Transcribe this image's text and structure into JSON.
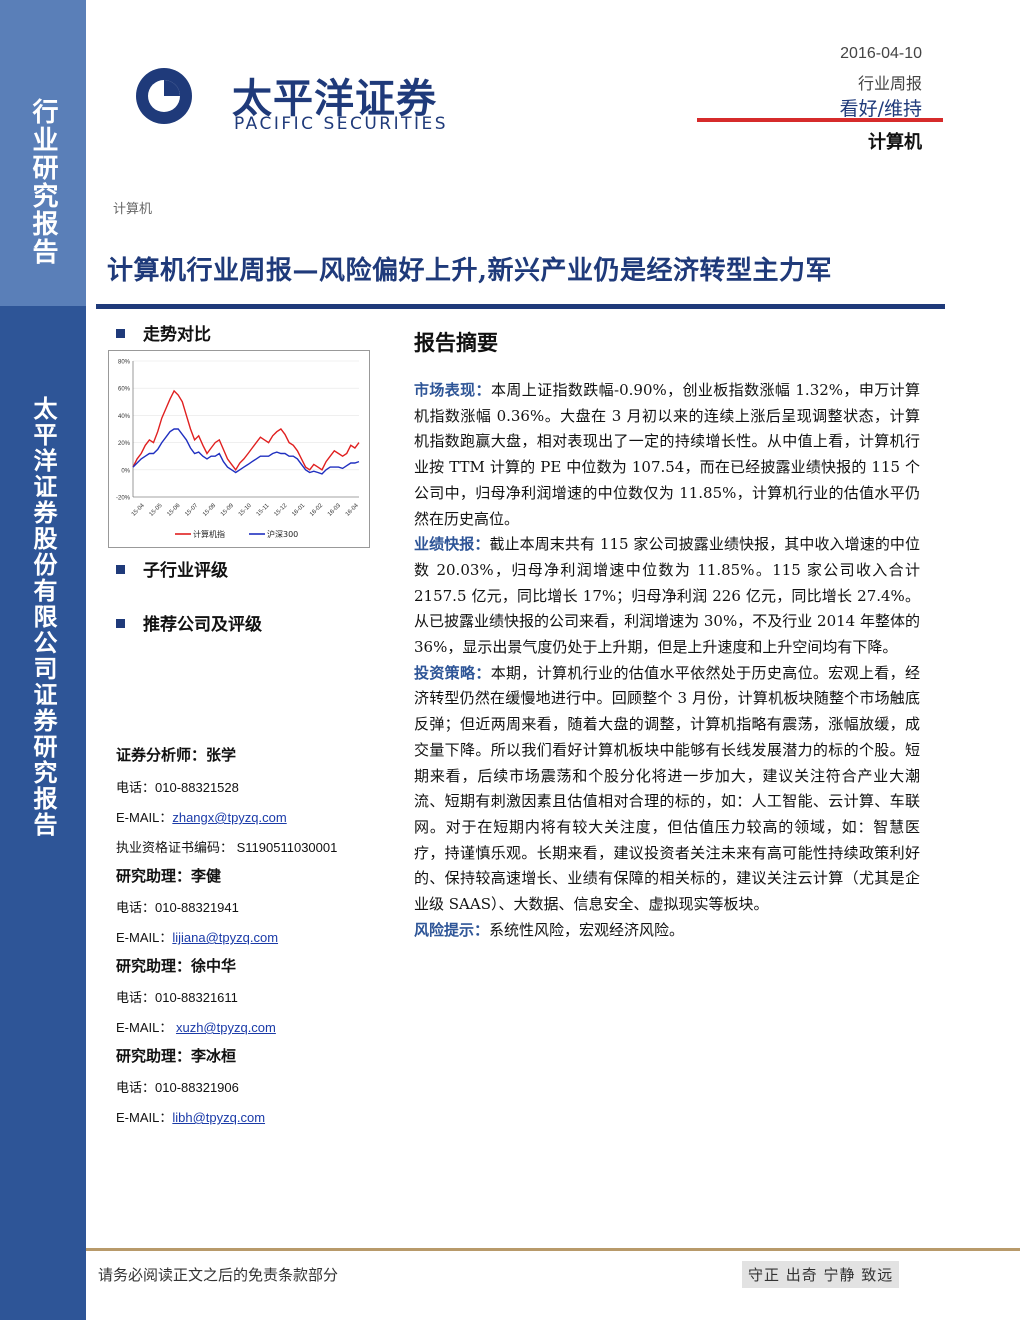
{
  "sidebar": {
    "top_text": "行业研究报告",
    "bottom_text": "太平洋证券股份有限公司证券研究报告"
  },
  "brand": {
    "name_cn": "太平洋证券",
    "name_en": "PACIFIC SECURITIES"
  },
  "header": {
    "date": "2016-04-10",
    "report_type": "行业周报",
    "rating": "看好/维持",
    "industry": "计算机"
  },
  "category_label": "计算机",
  "title": "计算机行业周报—风险偏好上升,新兴产业仍是经济转型主力军",
  "left": {
    "trend_heading": "走势对比",
    "subindustry_heading": "子行业评级",
    "recommend_heading": "推荐公司及评级"
  },
  "chart_data": {
    "type": "line",
    "ylim": [
      -0.2,
      0.8
    ],
    "y_ticks": [
      "80%",
      "60%",
      "40%",
      "20%",
      "0%",
      "-20%"
    ],
    "x_ticks": [
      "15-04",
      "15-05",
      "15-06",
      "15-07",
      "15-08",
      "15-09",
      "15-10",
      "15-11",
      "15-12",
      "16-01",
      "16-02",
      "16-03",
      "16-04"
    ],
    "series": [
      {
        "name": "计算机指",
        "color": "#e02020",
        "values": [
          0.02,
          0.08,
          0.12,
          0.18,
          0.22,
          0.2,
          0.28,
          0.38,
          0.45,
          0.52,
          0.58,
          0.55,
          0.5,
          0.4,
          0.3,
          0.22,
          0.25,
          0.18,
          0.12,
          0.16,
          0.2,
          0.22,
          0.15,
          0.08,
          0.04,
          0.0,
          0.05,
          0.08,
          0.12,
          0.16,
          0.2,
          0.24,
          0.22,
          0.2,
          0.25,
          0.28,
          0.3,
          0.26,
          0.2,
          0.18,
          0.14,
          0.08,
          0.02,
          0.0,
          0.04,
          0.02,
          0.0,
          0.06,
          0.1,
          0.14,
          0.12,
          0.1,
          0.12,
          0.18,
          0.16,
          0.2
        ]
      },
      {
        "name": "沪深300",
        "color": "#2030c0",
        "values": [
          0.02,
          0.05,
          0.08,
          0.1,
          0.12,
          0.12,
          0.15,
          0.2,
          0.24,
          0.28,
          0.3,
          0.3,
          0.26,
          0.22,
          0.16,
          0.12,
          0.13,
          0.1,
          0.08,
          0.1,
          0.1,
          0.12,
          0.06,
          0.02,
          0.0,
          -0.02,
          0.0,
          0.02,
          0.04,
          0.06,
          0.08,
          0.1,
          0.1,
          0.1,
          0.12,
          0.13,
          0.12,
          0.12,
          0.1,
          0.1,
          0.08,
          0.04,
          0.0,
          -0.02,
          -0.01,
          -0.02,
          -0.03,
          0.0,
          0.02,
          0.02,
          0.02,
          0.01,
          0.03,
          0.05,
          0.05,
          0.06
        ]
      }
    ]
  },
  "contacts": [
    {
      "role": "证券分析师：张学",
      "phone_label": "电话：",
      "phone": "010-88321528",
      "email_label": "E-MAIL：",
      "email": "zhangx@tpyzq.com",
      "license": "执业资格证书编码： S1190511030001"
    },
    {
      "role": "研究助理：李健",
      "phone_label": "电话：",
      "phone": "010-88321941",
      "email_label": "E-MAIL：",
      "email": "lijiana@tpyzq.com"
    },
    {
      "role": "研究助理：徐中华",
      "phone_label": "电话：",
      "phone": "010-88321611",
      "email_label": "E-MAIL：",
      "email": "xuzh@tpyzq.com"
    },
    {
      "role": "研究助理：李冰桓",
      "phone_label": "电话：",
      "phone": "010-88321906",
      "email_label": "E-MAIL：",
      "email": "libh@tpyzq.com"
    }
  ],
  "summary": {
    "heading": "报告摘要",
    "paragraphs": [
      {
        "label": "市场表现：",
        "text": "本周上证指数跌幅-0.90%，创业板指数涨幅 1.32%，申万计算机指数涨幅 0.36%。大盘在 3 月初以来的连续上涨后呈现调整状态，计算机指数跑赢大盘，相对表现出了一定的持续增长性。从中值上看，计算机行业按 TTM 计算的 PE 中位数为 107.54，而在已经披露业绩快报的 115 个公司中，归母净利润增速的中位数仅为 11.85%，计算机行业的估值水平仍然在历史高位。"
      },
      {
        "label": "业绩快报：",
        "text": "截止本周末共有 115 家公司披露业绩快报，其中收入增速的中位数 20.03%，归母净利润增速中位数为 11.85%。115 家公司收入合计 2157.5 亿元，同比增长 17%；归母净利润 226 亿元，同比增长 27.4%。从已披露业绩快报的公司来看，利润增速为 30%，不及行业 2014 年整体的 36%，显示出景气度仍处于上升期，但是上升速度和上升空间均有下降。"
      },
      {
        "label": "投资策略：",
        "text": "本期，计算机行业的估值水平依然处于历史高位。宏观上看，经济转型仍然在缓慢地进行中。回顾整个 3 月份，计算机板块随整个市场触底反弹；但近两周来看，随着大盘的调整，计算机指略有震荡，涨幅放缓，成交量下降。所以我们看好计算机板块中能够有长线发展潜力的标的个股。短期来看，后续市场震荡和个股分化将进一步加大，建议关注符合产业大潮流、短期有刺激因素且估值相对合理的标的，如：人工智能、云计算、车联网。对于在短期内将有较大关注度，但估值压力较高的领域，如：智慧医疗，持谨慎乐观。长期来看，建议投资者关注未来有高可能性持续政策利好的、保持较高速增长、业绩有保障的相关标的，建议关注云计算（尤其是企业级 SAAS）、大数据、信息安全、虚拟现实等板块。"
      },
      {
        "label": "风险提示：",
        "text": "系统性风险，宏观经济风险。"
      }
    ]
  },
  "footer": {
    "disclaimer": "请务必阅读正文之后的免责条款部分",
    "motto": "守正 出奇 宁静 致远"
  },
  "colors": {
    "brand_blue": "#1f3a7a",
    "sidebar_blue": "#2e5597",
    "accent_red": "#d62b2b"
  }
}
